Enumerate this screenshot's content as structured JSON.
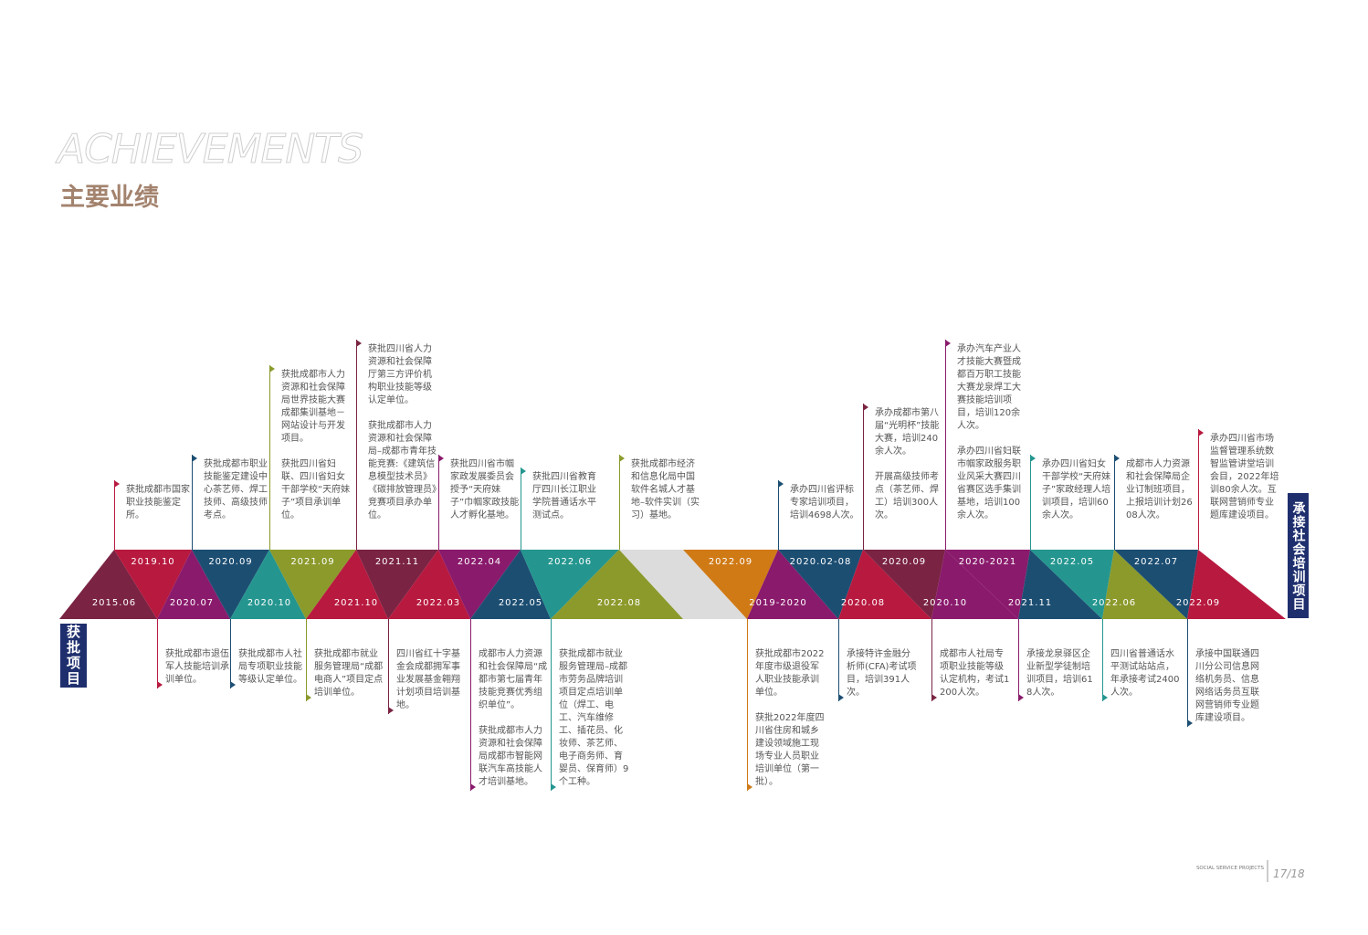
{
  "header": {
    "title": "ACHIEVEMENTS",
    "subtitle": "主要业绩"
  },
  "approved_projects": {
    "label": "获批项目",
    "events": [
      {
        "date": "2015.06",
        "color": "#7a2343",
        "top": [],
        "bottom": []
      },
      {
        "date": "2019.10",
        "color": "#b8193f",
        "top": [
          "获批成都市国家职业技能鉴定所。"
        ],
        "bottom": [
          "获批成都市退伍军人技能培训承训单位。"
        ]
      },
      {
        "date": "2020.07",
        "color": "#8a1a6c",
        "top": [],
        "bottom": []
      },
      {
        "date": "2020.09",
        "color": "#1c4e72",
        "top": [
          "获批成都市职业技能鉴定建设中心茶艺师、焊工技师、高级技师考点。"
        ],
        "bottom": [
          "获批成都市人社局专项职业技能等级认定单位。"
        ]
      },
      {
        "date": "2020.10",
        "color": "#24968f",
        "top": [],
        "bottom": []
      },
      {
        "date": "2021.09",
        "color": "#8b9a2b",
        "top": [
          "获批成都市人力资源和社会保障局世界技能大赛成都集训基地－网站设计与开发项目。",
          "获批四川省妇联、四川省妇女干部学校“天府妹子”项目承训单位。"
        ],
        "bottom": [
          "获批成都市就业服务管理局“成都电商人”项目定点培训单位。"
        ]
      },
      {
        "date": "2021.10",
        "color": "#b8193f",
        "top": [],
        "bottom": []
      },
      {
        "date": "2021.11",
        "color": "#7a2343",
        "top": [
          "获批四川省人力资源和社会保障厅第三方评价机构职业技能等级认定单位。",
          "获批成都市人力资源和社会保障局–成都市青年技能竞赛:《建筑信息模型技术员》《碳排放管理员》竞赛项目承办单位。"
        ],
        "bottom": [
          "四川省红十字基金会成都拥军事业发展基金翱翔计划项目培训基地。"
        ]
      },
      {
        "date": "2022.03",
        "color": "#b8193f",
        "top": [],
        "bottom": []
      },
      {
        "date": "2022.04",
        "color": "#8a1a6c",
        "top": [
          "获批四川省市帼家政发展委员会授予“天府妹子”巾帼家政技能人才孵化基地。"
        ],
        "bottom": [
          "成都市人力资源和社会保障局“成都市第七届青年技能竞赛优秀组织单位”。",
          "获批成都市人力资源和社会保障局成都市智能网联汽车高技能人才培训基地。"
        ]
      },
      {
        "date": "2022.05",
        "color": "#1c4e72",
        "top": [],
        "bottom": []
      },
      {
        "date": "2022.06",
        "color": "#24968f",
        "top": [
          "获批四川省教育厅四川长江职业学院普通话水平测试点。"
        ],
        "bottom": [
          "获批成都市就业服务管理局–成都市劳务品牌培训项目定点培训单位（焊工、电工、汽车维修工、插花员、化妆师、茶艺师、电子商务师、育婴员、保育师）9个工种。"
        ]
      },
      {
        "date": "2022.08",
        "color": "#8b9a2b",
        "top": [
          "获批成都市经济和信息化局中国软件名城人才基地–软件实训（实习）基地。"
        ],
        "bottom": []
      }
    ]
  },
  "training_projects": {
    "label": "承接社会培训项目",
    "events": [
      {
        "date": "2022.09",
        "color": "#d07a16",
        "top": [],
        "bottom": [
          "获批成都市2022年度市级退役军人职业技能承训单位。",
          "获批2022年度四川省住房和城乡建设领域施工现场专业人员职业培训单位（第一批）。"
        ]
      },
      {
        "date": "2019-2020",
        "color": "#8a1a6c",
        "top": [],
        "bottom": []
      },
      {
        "date": "2020.02-08",
        "color": "#1c4e72",
        "top": [
          "承办四川省评标专家培训项目，培训4698人次。"
        ],
        "bottom": [
          "承接特许金融分析师(CFA)考试项目，培训391人次。"
        ]
      },
      {
        "date": "2020.08",
        "color": "#b8193f",
        "top": [],
        "bottom": []
      },
      {
        "date": "2020.09",
        "color": "#7a2343",
        "top": [
          "承办成都市第八届“光明杯”技能大赛，培训240余人次。",
          "开展高级技师考点（茶艺师、焊工）培训300人次。"
        ],
        "bottom": [
          "成都市人社局专项职业技能等级认定机构，考试1200人次。"
        ]
      },
      {
        "date": "2020.10",
        "color": "#8a1a6c",
        "top": [],
        "bottom": []
      },
      {
        "date": "2020-2021",
        "color": "#8a1a6c",
        "top": [
          "承办汽车产业人才技能大赛暨成都百万职工技能大赛龙泉焊工大赛技能培训项目，培训120余人次。",
          "承办四川省妇联市帼家政服务职业风采大赛四川省赛区选手集训基地，培训100余人次。"
        ],
        "bottom": [
          "承接龙泉驿区企业新型学徒制培训项目，培训618人次。"
        ]
      },
      {
        "date": "2021.11",
        "color": "#1c4e72",
        "top": [],
        "bottom": []
      },
      {
        "date": "2022.05",
        "color": "#24968f",
        "top": [
          "承办四川省妇女干部学校“天府妹子”家政经理人培训项目，培训60余人次。"
        ],
        "bottom": [
          "四川省普通话水平测试站站点，年承接考试2400人次。"
        ]
      },
      {
        "date": "2022.06",
        "color": "#8b9a2b",
        "top": [],
        "bottom": []
      },
      {
        "date": "2022.07",
        "color": "#1c4e72",
        "top": [
          "成都市人力资源和社会保障局企业订制班项目，上报培训计划2608人次。"
        ],
        "bottom": [
          "承接中国联通四川分公司信息网络机务员、信息网络话务员互联网营销师专业题库建设项目。"
        ]
      },
      {
        "date": "2022.09",
        "color": "#b8193f",
        "top": [
          "承办四川省市场监督管理系统数智监管讲堂培训会目，2022年培训80余人次。互联网营销师专业题库建设项目。"
        ],
        "bottom": []
      }
    ]
  },
  "footer": {
    "section": "SOCIAL SERVICE PROJECTS",
    "page": "17/18"
  }
}
